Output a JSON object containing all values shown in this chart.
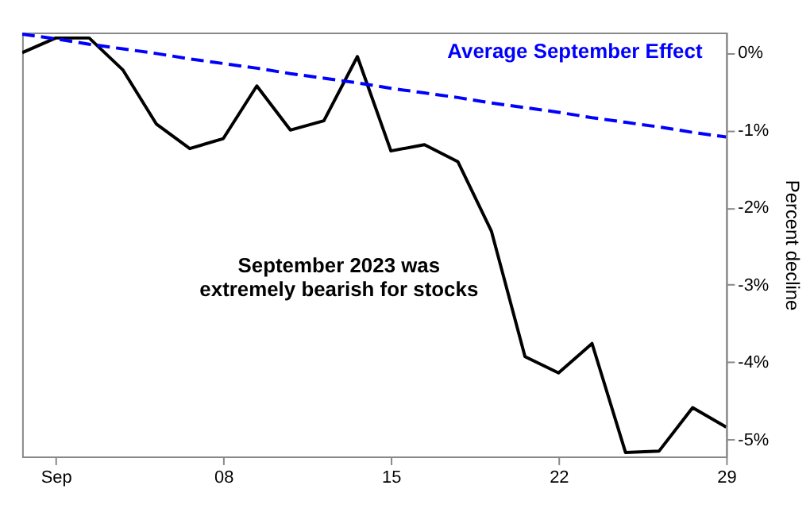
{
  "chart_data": {
    "type": "line",
    "ylabel": "Percent decline",
    "annotations": [
      "September 2023 was\nextremely bearish for stocks"
    ],
    "categories": [
      null,
      "Sep",
      null,
      null,
      null,
      null,
      "08",
      null,
      null,
      null,
      null,
      "15",
      null,
      null,
      null,
      null,
      "22",
      null,
      null,
      null,
      null,
      "29"
    ],
    "ylim": [
      -5.22,
      0.26
    ],
    "yticks": [
      {
        "value": 0,
        "label": "0%"
      },
      {
        "value": -1,
        "label": "-1%"
      },
      {
        "value": -2,
        "label": "-2%"
      },
      {
        "value": -3,
        "label": "-3%"
      },
      {
        "value": -4,
        "label": "-4%"
      },
      {
        "value": -5,
        "label": "-5%"
      }
    ],
    "grid": false,
    "series": [
      {
        "color": "#000000",
        "line_style": "solid",
        "values": [
          0.0,
          0.19,
          0.19,
          -0.22,
          -0.92,
          -1.24,
          -1.11,
          -0.43,
          -1.0,
          -0.88,
          -0.05,
          -1.27,
          -1.19,
          -1.41,
          -2.31,
          -3.93,
          -4.14,
          -3.76,
          -5.17,
          -5.15,
          -4.59,
          -4.84
        ]
      },
      {
        "name": "Average September Effect",
        "color": "#0000ff",
        "line_style": "dashed",
        "values": [
          0.24,
          0.18,
          0.11,
          0.05,
          -0.01,
          -0.08,
          -0.14,
          -0.2,
          -0.27,
          -0.33,
          -0.39,
          -0.46,
          -0.52,
          -0.58,
          -0.65,
          -0.71,
          -0.77,
          -0.84,
          -0.9,
          -0.96,
          -1.03,
          -1.09
        ]
      }
    ]
  }
}
